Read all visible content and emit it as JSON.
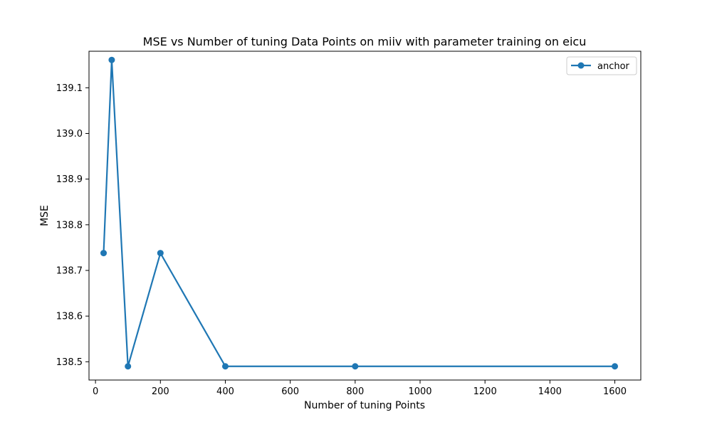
{
  "chart_data": {
    "type": "line",
    "title": "MSE vs Number of tuning Data Points on miiv with parameter training on eicu",
    "xlabel": "Number of tuning Points",
    "ylabel": "MSE",
    "xlim": [
      -20,
      1680
    ],
    "ylim": [
      138.46,
      139.18
    ],
    "xticks": [
      0,
      200,
      400,
      600,
      800,
      1000,
      1200,
      1400,
      1600
    ],
    "yticks": [
      138.5,
      138.6,
      138.7,
      138.8,
      138.9,
      139.0,
      139.1
    ],
    "xtick_labels": [
      "0",
      "200",
      "400",
      "600",
      "800",
      "1000",
      "1200",
      "1400",
      "1600"
    ],
    "ytick_labels": [
      "138.5",
      "138.6",
      "138.7",
      "138.8",
      "138.9",
      "139.0",
      "139.1"
    ],
    "grid": false,
    "legend_position": "top-right",
    "series": [
      {
        "name": "anchor",
        "color": "#1f77b4",
        "marker": "circle",
        "x": [
          25,
          50,
          100,
          200,
          400,
          800,
          1600
        ],
        "y": [
          138.738,
          139.161,
          138.49,
          138.738,
          138.49,
          138.49,
          138.49
        ]
      }
    ]
  }
}
